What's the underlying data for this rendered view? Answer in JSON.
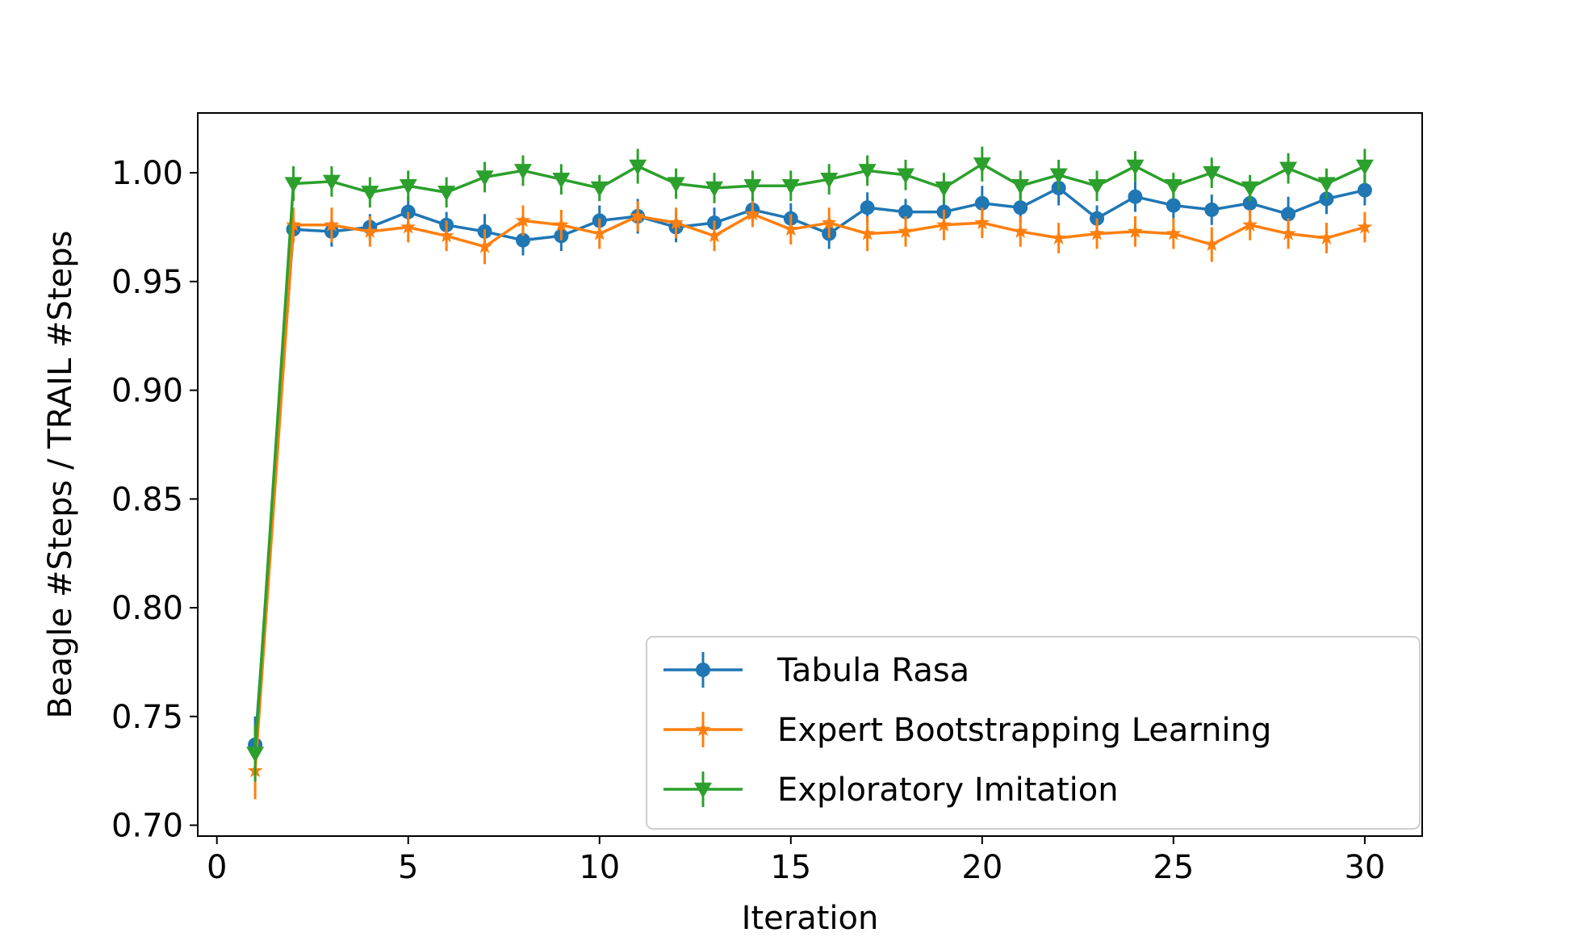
{
  "chart_data": {
    "type": "line",
    "title": "",
    "xlabel": "Iteration",
    "ylabel": "Beagle #Steps / TRAIL #Steps",
    "xlim": [
      -0.5,
      31.5
    ],
    "ylim": [
      0.695,
      1.0275
    ],
    "xticks": [
      0,
      5,
      10,
      15,
      20,
      25,
      30
    ],
    "xtick_labels": [
      "0",
      "5",
      "10",
      "15",
      "20",
      "25",
      "30"
    ],
    "yticks": [
      0.7,
      0.75,
      0.8,
      0.85,
      0.9,
      0.95,
      1.0
    ],
    "ytick_labels": [
      "0.70",
      "0.75",
      "0.80",
      "0.85",
      "0.90",
      "0.95",
      "1.00"
    ],
    "grid": false,
    "legend_position": "bottom-right",
    "x": [
      1,
      2,
      3,
      4,
      5,
      6,
      7,
      8,
      9,
      10,
      11,
      12,
      13,
      14,
      15,
      16,
      17,
      18,
      19,
      20,
      21,
      22,
      23,
      24,
      25,
      26,
      27,
      28,
      29,
      30
    ],
    "series": [
      {
        "name": "Tabula Rasa",
        "color": "#1f77b4",
        "marker": "circle",
        "values": [
          0.737,
          0.974,
          0.973,
          0.975,
          0.982,
          0.976,
          0.973,
          0.969,
          0.971,
          0.978,
          0.98,
          0.975,
          0.977,
          0.983,
          0.979,
          0.972,
          0.984,
          0.982,
          0.982,
          0.986,
          0.984,
          0.993,
          0.979,
          0.989,
          0.985,
          0.983,
          0.986,
          0.981,
          0.988,
          0.992
        ],
        "errors": [
          0.013,
          0.006,
          0.007,
          0.006,
          0.007,
          0.006,
          0.008,
          0.007,
          0.007,
          0.007,
          0.008,
          0.007,
          0.007,
          0.006,
          0.007,
          0.007,
          0.007,
          0.006,
          0.006,
          0.008,
          0.007,
          0.008,
          0.006,
          0.007,
          0.006,
          0.007,
          0.006,
          0.008,
          0.007,
          0.007
        ]
      },
      {
        "name": "Expert Bootstrapping Learning",
        "color": "#ff7f0e",
        "marker": "star",
        "values": [
          0.725,
          0.976,
          0.976,
          0.973,
          0.975,
          0.971,
          0.966,
          0.978,
          0.976,
          0.972,
          0.98,
          0.977,
          0.971,
          0.981,
          0.974,
          0.977,
          0.972,
          0.973,
          0.976,
          0.977,
          0.973,
          0.97,
          0.972,
          0.973,
          0.972,
          0.967,
          0.976,
          0.972,
          0.97,
          0.975
        ],
        "errors": [
          0.013,
          0.008,
          0.008,
          0.007,
          0.007,
          0.007,
          0.008,
          0.007,
          0.007,
          0.007,
          0.007,
          0.007,
          0.007,
          0.006,
          0.007,
          0.007,
          0.008,
          0.007,
          0.007,
          0.007,
          0.007,
          0.007,
          0.007,
          0.007,
          0.007,
          0.008,
          0.007,
          0.007,
          0.007,
          0.007
        ]
      },
      {
        "name": "Exploratory Imitation",
        "color": "#2ca02c",
        "marker": "triangle-down",
        "values": [
          0.733,
          0.995,
          0.996,
          0.991,
          0.994,
          0.991,
          0.998,
          1.001,
          0.997,
          0.993,
          1.003,
          0.995,
          0.993,
          0.994,
          0.994,
          0.997,
          1.001,
          0.999,
          0.993,
          1.004,
          0.994,
          0.999,
          0.994,
          1.003,
          0.994,
          1.0,
          0.993,
          1.002,
          0.995,
          1.003
        ],
        "errors": [
          0.013,
          0.008,
          0.007,
          0.007,
          0.007,
          0.007,
          0.007,
          0.007,
          0.007,
          0.006,
          0.008,
          0.007,
          0.007,
          0.007,
          0.007,
          0.007,
          0.007,
          0.007,
          0.007,
          0.008,
          0.007,
          0.007,
          0.007,
          0.007,
          0.006,
          0.007,
          0.006,
          0.007,
          0.007,
          0.008
        ]
      }
    ]
  }
}
